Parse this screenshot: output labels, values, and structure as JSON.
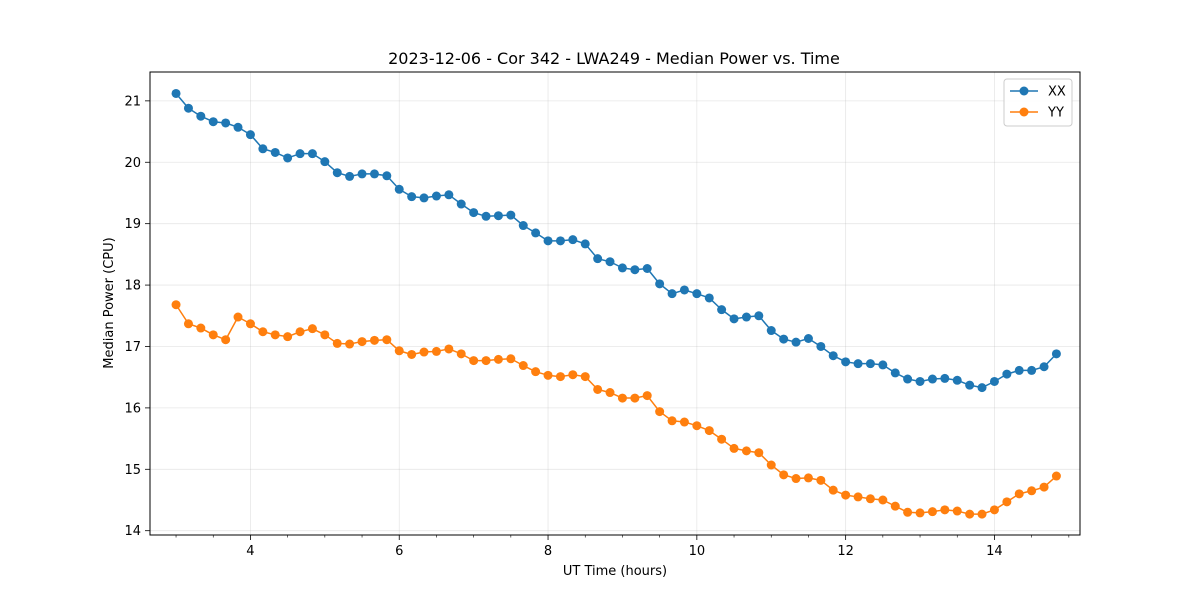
{
  "chart_data": {
    "type": "line",
    "title": "2023-12-06 - Cor 342 - LWA249 - Median Power vs. Time",
    "xlabel": "UT Time (hours)",
    "ylabel": "Median Power (CPU)",
    "xlim": [
      2.65,
      15.15
    ],
    "ylim": [
      13.93,
      21.47
    ],
    "xticks": [
      4,
      6,
      8,
      10,
      12,
      14
    ],
    "xminor_step": 0.5,
    "yticks": [
      14,
      15,
      16,
      17,
      18,
      19,
      20,
      21
    ],
    "grid": true,
    "legend_position": "top-right",
    "x": [
      3.0,
      3.167,
      3.333,
      3.5,
      3.667,
      3.833,
      4.0,
      4.167,
      4.333,
      4.5,
      4.667,
      4.833,
      5.0,
      5.167,
      5.333,
      5.5,
      5.667,
      5.833,
      6.0,
      6.167,
      6.333,
      6.5,
      6.667,
      6.833,
      7.0,
      7.167,
      7.333,
      7.5,
      7.667,
      7.833,
      8.0,
      8.167,
      8.333,
      8.5,
      8.667,
      8.833,
      9.0,
      9.167,
      9.333,
      9.5,
      9.667,
      9.833,
      10.0,
      10.167,
      10.333,
      10.5,
      10.667,
      10.833,
      11.0,
      11.167,
      11.333,
      11.5,
      11.667,
      11.833,
      12.0,
      12.167,
      12.333,
      12.5,
      12.667,
      12.833,
      13.0,
      13.167,
      13.333,
      13.5,
      13.667,
      13.833,
      14.0,
      14.167,
      14.333,
      14.5,
      14.667,
      14.833
    ],
    "series": [
      {
        "name": "XX",
        "color": "#1f77b4",
        "values": [
          21.12,
          20.88,
          20.75,
          20.66,
          20.64,
          20.57,
          20.45,
          20.22,
          20.16,
          20.07,
          20.14,
          20.14,
          20.01,
          19.83,
          19.77,
          19.81,
          19.81,
          19.78,
          19.56,
          19.44,
          19.42,
          19.45,
          19.47,
          19.32,
          19.18,
          19.12,
          19.13,
          19.14,
          18.97,
          18.85,
          18.72,
          18.72,
          18.74,
          18.67,
          18.43,
          18.38,
          18.28,
          18.25,
          18.27,
          18.02,
          17.86,
          17.92,
          17.86,
          17.79,
          17.6,
          17.45,
          17.48,
          17.5,
          17.26,
          17.12,
          17.07,
          17.13,
          17.0,
          16.85,
          16.75,
          16.72,
          16.72,
          16.7,
          16.57,
          16.47,
          16.43,
          16.47,
          16.48,
          16.45,
          16.37,
          16.33,
          16.43,
          16.55,
          16.61,
          16.61,
          16.67,
          16.88
        ]
      },
      {
        "name": "YY",
        "color": "#ff7f0e",
        "values": [
          17.68,
          17.37,
          17.3,
          17.19,
          17.11,
          17.48,
          17.37,
          17.24,
          17.19,
          17.16,
          17.24,
          17.29,
          17.19,
          17.05,
          17.04,
          17.08,
          17.1,
          17.11,
          16.93,
          16.87,
          16.91,
          16.92,
          16.96,
          16.88,
          16.77,
          16.77,
          16.79,
          16.8,
          16.69,
          16.59,
          16.53,
          16.51,
          16.54,
          16.51,
          16.3,
          16.25,
          16.16,
          16.16,
          16.2,
          15.94,
          15.79,
          15.77,
          15.71,
          15.63,
          15.49,
          15.34,
          15.3,
          15.27,
          15.07,
          14.91,
          14.85,
          14.86,
          14.82,
          14.66,
          14.58,
          14.55,
          14.52,
          14.5,
          14.4,
          14.3,
          14.29,
          14.31,
          14.34,
          14.32,
          14.27,
          14.27,
          14.34,
          14.47,
          14.6,
          14.65,
          14.71,
          14.89
        ]
      }
    ]
  }
}
